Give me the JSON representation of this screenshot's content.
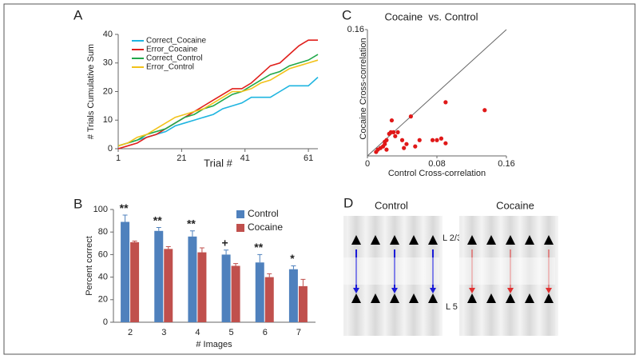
{
  "chart_data": [
    {
      "type": "line",
      "panel_label": "A",
      "ylabel": "# Trials Cumulative Sum",
      "xlabel": "Trial #",
      "x": [
        1,
        4,
        7,
        10,
        13,
        16,
        19,
        22,
        25,
        28,
        31,
        34,
        37,
        40,
        43,
        46,
        49,
        52,
        55,
        58,
        61,
        64
      ],
      "xlim": [
        1,
        64
      ],
      "xticks": [
        1,
        21,
        41,
        61
      ],
      "ylim": [
        0,
        40
      ],
      "yticks": [
        0,
        10,
        20,
        30,
        40
      ],
      "series": [
        {
          "name": "Correct_Cocaine",
          "color": "#1fb5e0",
          "values": [
            1,
            2,
            3,
            4,
            5,
            6,
            8,
            9,
            10,
            11,
            12,
            14,
            15,
            16,
            18,
            18,
            18,
            20,
            22,
            22,
            22,
            25
          ]
        },
        {
          "name": "Error_Cocaine",
          "color": "#e0201c",
          "values": [
            0,
            1,
            2,
            4,
            5,
            7,
            9,
            11,
            13,
            15,
            17,
            19,
            21,
            21,
            23,
            26,
            29,
            30,
            33,
            36,
            38,
            38
          ]
        },
        {
          "name": "Correct_Control",
          "color": "#22a84a",
          "values": [
            1,
            2,
            3,
            5,
            6,
            7,
            9,
            11,
            12,
            14,
            15,
            17,
            19,
            20,
            22,
            24,
            26,
            27,
            29,
            30,
            31,
            33
          ]
        },
        {
          "name": "Error_Control",
          "color": "#f2c21a",
          "values": [
            1,
            2,
            4,
            5,
            7,
            9,
            11,
            12,
            13,
            14,
            16,
            18,
            20,
            20,
            21,
            23,
            24,
            26,
            28,
            29,
            30,
            31
          ]
        }
      ]
    },
    {
      "type": "bar",
      "panel_label": "B",
      "ylabel": "Percent correct",
      "xlabel": "# Images",
      "categories": [
        "2",
        "3",
        "4",
        "5",
        "6",
        "7"
      ],
      "ylim": [
        0,
        100
      ],
      "yticks": [
        0,
        20,
        40,
        60,
        80,
        100
      ],
      "annotations": [
        "**",
        "**",
        "**",
        "+",
        "**",
        "*"
      ],
      "series": [
        {
          "name": "Control",
          "color": "#4f81bd",
          "values": [
            89,
            81,
            76,
            60,
            53,
            47
          ],
          "errors": [
            6,
            3,
            5,
            4,
            7,
            3
          ]
        },
        {
          "name": "Cocaine",
          "color": "#c0504d",
          "values": [
            71,
            65,
            62,
            50,
            40,
            32
          ],
          "errors": [
            1,
            2,
            4,
            2,
            3,
            6
          ]
        }
      ]
    },
    {
      "type": "scatter",
      "panel_label": "C",
      "title": "Cocaine  vs. Control",
      "xlabel": "Control Cross-correlation",
      "ylabel": "Cocaine Cross-correlation",
      "xlim": [
        0,
        0.16
      ],
      "ylim": [
        0,
        0.16
      ],
      "xticks": [
        0,
        0.08,
        0.16
      ],
      "yticks": [
        0.16
      ],
      "color": "#e01818",
      "x": [
        0.01,
        0.012,
        0.015,
        0.018,
        0.02,
        0.022,
        0.025,
        0.027,
        0.03,
        0.032,
        0.028,
        0.035,
        0.04,
        0.042,
        0.045,
        0.05,
        0.055,
        0.06,
        0.075,
        0.08,
        0.085,
        0.09,
        0.09,
        0.135,
        0.022,
        0.02
      ],
      "y": [
        0.005,
        0.008,
        0.01,
        0.012,
        0.015,
        0.02,
        0.028,
        0.03,
        0.03,
        0.025,
        0.045,
        0.03,
        0.02,
        0.01,
        0.015,
        0.05,
        0.012,
        0.02,
        0.02,
        0.02,
        0.022,
        0.068,
        0.016,
        0.058,
        0.008,
        0.018
      ]
    }
  ],
  "diagram": {
    "panel_label": "D",
    "left_title": "Control",
    "right_title": "Cocaine",
    "layers": [
      "L 2/3",
      "L 5"
    ]
  }
}
